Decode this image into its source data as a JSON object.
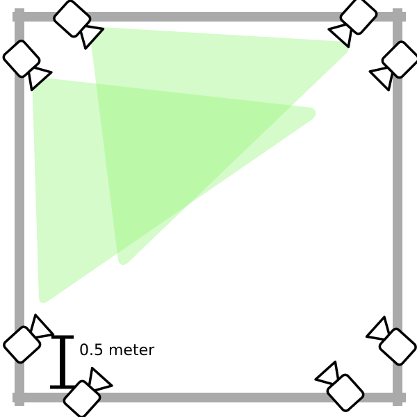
{
  "scale_bar": {
    "label": "0.5 meter"
  },
  "colors": {
    "wall": "#aaaaaa",
    "field_of_view": "#99f57f",
    "camera_stroke": "#000000",
    "camera_fill": "#ffffff",
    "scale_bar": "#000000"
  },
  "cameras": [
    {
      "name": "camera-top-left-upper",
      "icon": "security-camera-icon",
      "fov_shown": true
    },
    {
      "name": "camera-top-left-lower",
      "icon": "security-camera-icon",
      "fov_shown": true
    },
    {
      "name": "camera-top-right-upper",
      "icon": "security-camera-icon",
      "fov_shown": false
    },
    {
      "name": "camera-top-right-lower",
      "icon": "security-camera-icon",
      "fov_shown": false
    },
    {
      "name": "camera-bottom-left-upper",
      "icon": "security-camera-icon",
      "fov_shown": false
    },
    {
      "name": "camera-bottom-left-lower",
      "icon": "security-camera-icon",
      "fov_shown": false
    },
    {
      "name": "camera-bottom-right-upper",
      "icon": "security-camera-icon",
      "fov_shown": false
    },
    {
      "name": "camera-bottom-right-lower",
      "icon": "security-camera-icon",
      "fov_shown": false
    }
  ]
}
